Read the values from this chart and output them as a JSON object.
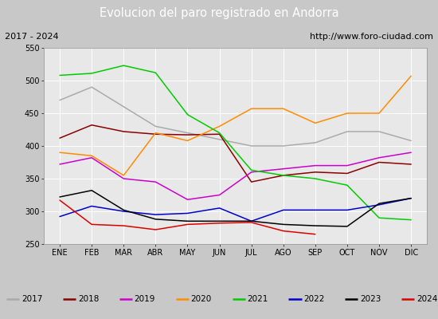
{
  "title": "Evolucion del paro registrado en Andorra",
  "subtitle_left": "2017 - 2024",
  "subtitle_right": "http://www.foro-ciudad.com",
  "months": [
    "ENE",
    "FEB",
    "MAR",
    "ABR",
    "MAY",
    "JUN",
    "JUL",
    "AGO",
    "SEP",
    "OCT",
    "NOV",
    "DIC"
  ],
  "ylim": [
    250,
    550
  ],
  "yticks": [
    250,
    300,
    350,
    400,
    450,
    500,
    550
  ],
  "series": {
    "2017": {
      "color": "#aaaaaa",
      "data": [
        470,
        490,
        null,
        430,
        420,
        410,
        400,
        400,
        405,
        422,
        422,
        408
      ]
    },
    "2018": {
      "color": "#8b0000",
      "data": [
        412,
        432,
        422,
        418,
        417,
        418,
        345,
        355,
        360,
        358,
        375,
        372
      ]
    },
    "2019": {
      "color": "#cc00cc",
      "data": [
        372,
        382,
        350,
        345,
        318,
        325,
        360,
        365,
        370,
        370,
        382,
        390
      ]
    },
    "2020": {
      "color": "#ff8c00",
      "data": [
        390,
        385,
        355,
        420,
        408,
        430,
        457,
        457,
        435,
        450,
        450,
        507
      ]
    },
    "2021": {
      "color": "#00cc00",
      "data": [
        508,
        511,
        523,
        512,
        448,
        420,
        363,
        355,
        350,
        340,
        290,
        287
      ]
    },
    "2022": {
      "color": "#0000cc",
      "data": [
        292,
        308,
        300,
        295,
        297,
        305,
        285,
        302,
        302,
        302,
        310,
        320
      ]
    },
    "2023": {
      "color": "#000000",
      "data": [
        322,
        332,
        302,
        288,
        285,
        285,
        285,
        280,
        278,
        277,
        312,
        320
      ]
    },
    "2024": {
      "color": "#dd0000",
      "data": [
        317,
        280,
        278,
        272,
        280,
        282,
        283,
        270,
        265,
        null,
        null,
        null
      ]
    }
  },
  "title_bg_color": "#4f81bd",
  "title_color": "#ffffff",
  "subtitle_bg_color": "#dcdcdc",
  "plot_bg_color": "#e8e8e8",
  "legend_bg_color": "#ffffff",
  "fig_bg_color": "#c8c8c8"
}
